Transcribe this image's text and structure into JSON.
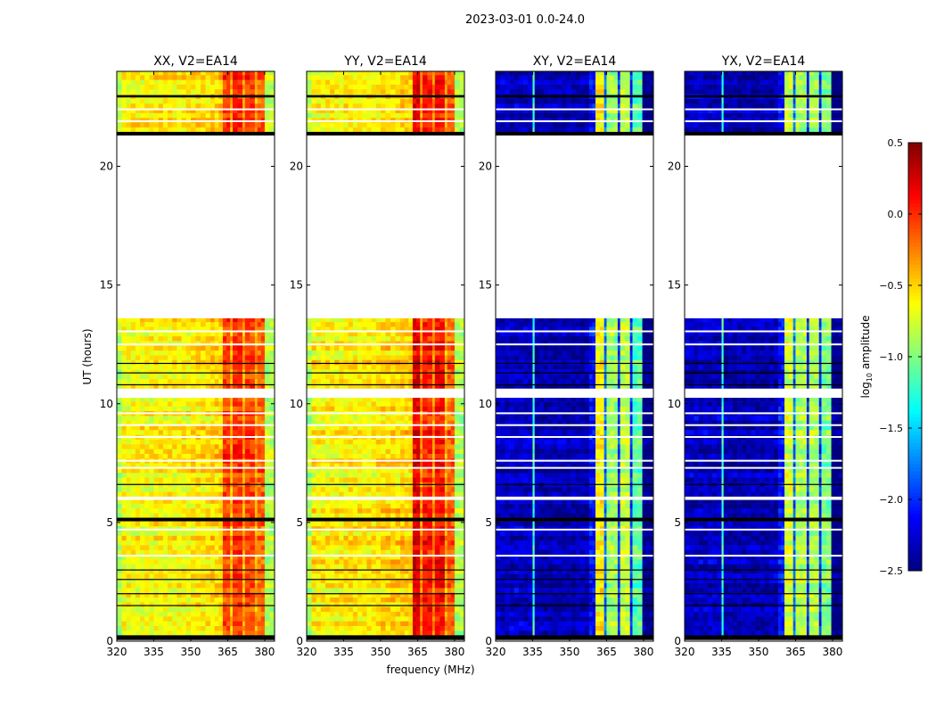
{
  "chart_data": {
    "type": "heatmap",
    "title": "2023-03-01 0.0-24.0",
    "xlabel": "frequency (MHz)",
    "ylabel": "UT (hours)",
    "xlim": [
      320,
      384
    ],
    "ylim": [
      0,
      24
    ],
    "xticks": [
      320,
      335,
      350,
      365,
      380
    ],
    "yticks": [
      0,
      5,
      10,
      15,
      20
    ],
    "colorbar": {
      "label_main": "log",
      "label_sub": "10",
      "label_rest": " amplitude",
      "range": [
        -2.5,
        0.5
      ],
      "ticks": [
        0.5,
        0.0,
        -0.5,
        -1.0,
        -1.5,
        -2.0,
        -2.5
      ],
      "tick_labels": [
        "0.5",
        "0.0",
        "−0.5",
        "−1.0",
        "−1.5",
        "−2.0",
        "−2.5"
      ],
      "colormap": "jet"
    },
    "time_segments_hours": [
      [
        0.25,
        5.05
      ],
      [
        5.2,
        5.95
      ],
      [
        6.1,
        10.25
      ],
      [
        10.65,
        13.6
      ],
      [
        21.45,
        24.0
      ]
    ],
    "flagged_bands_hours": [
      [
        0.05,
        0.25
      ],
      [
        5.05,
        5.2
      ],
      [
        21.3,
        21.45
      ],
      [
        22.9,
        23.0
      ]
    ],
    "flag_lines_hours": [
      1.5,
      2.0,
      2.6,
      3.0,
      6.6,
      10.8,
      11.3,
      11.7
    ],
    "gap_lines_hours": [
      3.6,
      4.7,
      7.3,
      7.6,
      8.6,
      9.1,
      9.6,
      12.5,
      13.05,
      21.9,
      22.4
    ],
    "panels": [
      {
        "title": "XX, V2=EA14",
        "show_ylabel": true,
        "show_xlabel": false,
        "bands": [
          [
            320,
            322,
            -0.85
          ],
          [
            322,
            335,
            -0.62
          ],
          [
            335,
            350,
            -0.6
          ],
          [
            350,
            358,
            -0.55
          ],
          [
            358,
            363,
            -0.5
          ],
          [
            363,
            366,
            -0.05
          ],
          [
            366,
            367,
            -0.4
          ],
          [
            367,
            371,
            0.0
          ],
          [
            371,
            372,
            -0.35
          ],
          [
            372,
            376,
            -0.05
          ],
          [
            376,
            377,
            -0.35
          ],
          [
            377,
            380,
            -0.15
          ],
          [
            380,
            384,
            -0.85
          ]
        ]
      },
      {
        "title": "YY, V2=EA14",
        "show_ylabel": false,
        "show_xlabel": true,
        "bands": [
          [
            320,
            322,
            -0.85
          ],
          [
            322,
            335,
            -0.6
          ],
          [
            335,
            350,
            -0.58
          ],
          [
            350,
            358,
            -0.52
          ],
          [
            358,
            363,
            -0.48
          ],
          [
            363,
            366,
            0.2
          ],
          [
            366,
            367,
            -0.3
          ],
          [
            367,
            371,
            0.05
          ],
          [
            371,
            372,
            -0.3
          ],
          [
            372,
            376,
            0.1
          ],
          [
            376,
            377,
            -0.35
          ],
          [
            377,
            380,
            -0.15
          ],
          [
            380,
            384,
            -0.85
          ]
        ]
      },
      {
        "title": "XY, V2=EA14",
        "show_ylabel": false,
        "show_xlabel": false,
        "bands": [
          [
            320,
            335,
            -2.3
          ],
          [
            335,
            335.8,
            -1.2
          ],
          [
            335.8,
            358,
            -2.35
          ],
          [
            358,
            360.5,
            -2.1
          ],
          [
            360.5,
            364,
            -0.6
          ],
          [
            364,
            365,
            -1.8
          ],
          [
            365,
            369.5,
            -0.9
          ],
          [
            369.5,
            370.5,
            -2.0
          ],
          [
            370.5,
            374.5,
            -0.8
          ],
          [
            374.5,
            375.5,
            -2.0
          ],
          [
            375.5,
            379.5,
            -1.1
          ],
          [
            379.5,
            384,
            -2.5
          ]
        ]
      },
      {
        "title": "YX, V2=EA14",
        "show_ylabel": false,
        "show_xlabel": false,
        "bands": [
          [
            320,
            335,
            -2.3
          ],
          [
            335,
            335.8,
            -1.2
          ],
          [
            335.8,
            358,
            -2.35
          ],
          [
            358,
            360.5,
            -2.1
          ],
          [
            360.5,
            364,
            -0.75
          ],
          [
            364,
            365,
            -1.8
          ],
          [
            365,
            369.5,
            -0.85
          ],
          [
            369.5,
            370.5,
            -2.0
          ],
          [
            370.5,
            374.5,
            -0.85
          ],
          [
            374.5,
            375.5,
            -2.0
          ],
          [
            375.5,
            379.5,
            -1.0
          ],
          [
            379.5,
            384,
            -2.5
          ]
        ]
      }
    ]
  }
}
